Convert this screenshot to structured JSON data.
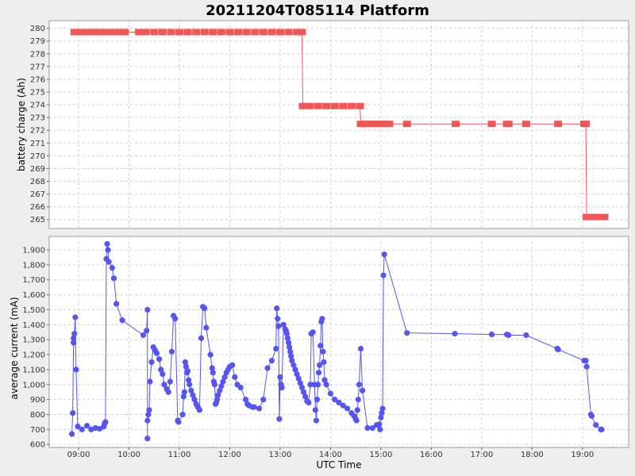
{
  "title": "20211204T085114 Platform",
  "colors": {
    "charge": "#f25555",
    "current": "#5555f2",
    "grid": "#d0d0d0"
  },
  "chart_data": [
    {
      "type": "line",
      "ylabel": "battery charge (Ah)",
      "ylim": [
        264.3,
        280.6
      ],
      "yticks": [
        265,
        266,
        267,
        268,
        269,
        270,
        271,
        272,
        273,
        274,
        275,
        276,
        277,
        278,
        279,
        280
      ],
      "series": [
        {
          "x": [
            "08:55",
            "09:02",
            "09:10",
            "09:18",
            "09:25",
            "09:32",
            "09:40",
            "09:47",
            "09:55",
            "10:12",
            "10:20",
            "10:30",
            "10:40",
            "10:50",
            "11:00",
            "11:10",
            "11:20",
            "11:30",
            "11:40",
            "11:50",
            "12:00",
            "12:10",
            "12:20",
            "12:30",
            "12:40",
            "12:50",
            "13:00",
            "13:10",
            "13:20",
            "13:26",
            "13:27",
            "13:35",
            "13:45",
            "13:55",
            "14:05",
            "14:15",
            "14:25",
            "14:35",
            "14:36",
            "14:39",
            "14:42",
            "14:45",
            "14:50",
            "14:55",
            "15:00",
            "15:05",
            "15:10",
            "15:31",
            "16:29",
            "17:12",
            "17:30",
            "17:32",
            "17:53",
            "18:31",
            "19:02",
            "19:04",
            "19:05",
            "19:10",
            "19:15",
            "19:22",
            "19:26"
          ],
          "y": [
            279.7,
            279.7,
            279.7,
            279.7,
            279.7,
            279.7,
            279.7,
            279.7,
            279.7,
            279.7,
            279.7,
            279.7,
            279.7,
            279.7,
            279.7,
            279.7,
            279.7,
            279.7,
            279.7,
            279.7,
            279.7,
            279.7,
            279.7,
            279.7,
            279.7,
            279.7,
            279.7,
            279.7,
            279.7,
            279.7,
            273.9,
            273.9,
            273.9,
            273.9,
            273.9,
            273.9,
            273.9,
            273.9,
            272.5,
            272.5,
            272.5,
            272.5,
            272.5,
            272.5,
            272.5,
            272.5,
            272.5,
            272.5,
            272.5,
            272.5,
            272.5,
            272.5,
            272.5,
            272.5,
            272.5,
            272.5,
            265.2,
            265.2,
            265.2,
            265.2,
            265.2
          ]
        }
      ]
    },
    {
      "type": "line",
      "xlabel": "UTC Time",
      "ylabel": "average current (mA)",
      "ylim": [
        580,
        1990
      ],
      "yticks": [
        600,
        700,
        800,
        900,
        1000,
        1100,
        1200,
        1300,
        1400,
        1500,
        1600,
        1700,
        1800,
        1900
      ],
      "ytick_labels": [
        "600",
        "700",
        "800",
        "900",
        "1,000",
        "1,100",
        "1,200",
        "1,300",
        "1,400",
        "1,500",
        "1,600",
        "1,700",
        "1,800",
        "1,900"
      ],
      "xticks": [
        "09:00",
        "10:00",
        "11:00",
        "12:00",
        "13:00",
        "14:00",
        "15:00",
        "16:00",
        "17:00",
        "18:00",
        "19:00"
      ],
      "series": [
        {
          "x": [
            "08:52",
            "08:53",
            "08:54",
            "08:54",
            "08:55",
            "08:56",
            "08:57",
            "08:59",
            "09:04",
            "09:10",
            "09:15",
            "09:20",
            "09:25",
            "09:30",
            "09:31",
            "09:32",
            "09:33",
            "09:34",
            "09:35",
            "09:36",
            "09:40",
            "09:42",
            "09:45",
            "09:52",
            "10:17",
            "10:21",
            "10:22",
            "10:22",
            "10:22",
            "10:23",
            "10:24",
            "10:25",
            "10:27",
            "10:29",
            "10:31",
            "10:33",
            "10:36",
            "10:38",
            "10:40",
            "10:42",
            "10:45",
            "10:47",
            "10:49",
            "10:51",
            "10:53",
            "10:55",
            "10:58",
            "10:59",
            "11:04",
            "11:05",
            "11:06",
            "11:07",
            "11:08",
            "11:09",
            "11:10",
            "11:11",
            "11:12",
            "11:14",
            "11:16",
            "11:18",
            "11:20",
            "11:22",
            "11:24",
            "11:26",
            "11:28",
            "11:30",
            "11:32",
            "11:37",
            "11:39",
            "11:40",
            "11:41",
            "11:42",
            "11:43",
            "11:44",
            "11:45",
            "11:46",
            "11:48",
            "11:50",
            "11:52",
            "11:54",
            "11:56",
            "11:58",
            "12:00",
            "12:03",
            "12:06",
            "12:09",
            "12:13",
            "12:19",
            "12:21",
            "12:23",
            "12:27",
            "12:29",
            "12:35",
            "12:40",
            "12:45",
            "12:50",
            "12:55",
            "12:56",
            "12:57",
            "12:58",
            "12:59",
            "13:00",
            "13:01",
            "13:02",
            "13:04",
            "13:06",
            "13:07",
            "13:08",
            "13:09",
            "13:10",
            "13:11",
            "13:12",
            "13:13",
            "13:14",
            "13:16",
            "13:18",
            "13:20",
            "13:22",
            "13:24",
            "13:26",
            "13:28",
            "13:30",
            "13:32",
            "13:34",
            "13:36",
            "13:37",
            "13:39",
            "13:41",
            "13:42",
            "13:43",
            "13:44",
            "13:45",
            "13:46",
            "13:47",
            "13:48",
            "13:49",
            "13:50",
            "13:51",
            "13:52",
            "13:53",
            "13:55",
            "14:00",
            "14:05",
            "14:10",
            "14:15",
            "14:20",
            "14:25",
            "14:28",
            "14:30",
            "14:31",
            "14:32",
            "14:33",
            "14:34",
            "14:36",
            "14:38",
            "14:44",
            "14:50",
            "14:55",
            "14:58",
            "14:59",
            "15:00",
            "15:01",
            "15:02",
            "15:03",
            "15:04",
            "15:31",
            "16:28",
            "17:12",
            "17:30",
            "17:32",
            "17:53",
            "18:30",
            "18:31",
            "19:02",
            "19:04",
            "19:05",
            "19:10",
            "19:11",
            "19:16",
            "19:22",
            "19:23"
          ],
          "y": [
            670,
            810,
            1280,
            1310,
            1340,
            1450,
            1100,
            720,
            700,
            725,
            700,
            710,
            705,
            720,
            740,
            750,
            1840,
            1940,
            1900,
            1820,
            1780,
            1710,
            1540,
            1430,
            1330,
            1360,
            1500,
            640,
            760,
            800,
            830,
            1020,
            1150,
            1250,
            1230,
            1210,
            1170,
            1100,
            1070,
            1000,
            970,
            950,
            1020,
            1220,
            1460,
            1440,
            760,
            750,
            800,
            920,
            950,
            1150,
            1120,
            1080,
            1090,
            1030,
            1000,
            960,
            930,
            900,
            870,
            850,
            830,
            1310,
            1520,
            1510,
            1380,
            1200,
            1110,
            1080,
            1020,
            1000,
            870,
            880,
            900,
            930,
            960,
            990,
            1020,
            1050,
            1080,
            1100,
            1120,
            1130,
            1050,
            1000,
            980,
            900,
            870,
            860,
            850,
            850,
            840,
            900,
            1110,
            1160,
            1240,
            1510,
            1440,
            1390,
            770,
            1050,
            1000,
            980,
            1400,
            1370,
            1360,
            1340,
            1310,
            1280,
            1250,
            1220,
            1190,
            1160,
            1130,
            1100,
            1070,
            1040,
            1010,
            980,
            950,
            920,
            890,
            880,
            1000,
            1340,
            1350,
            1000,
            830,
            760,
            900,
            1000,
            1080,
            1130,
            1260,
            1420,
            1440,
            1220,
            1150,
            1030,
            1000,
            940,
            900,
            880,
            860,
            840,
            810,
            790,
            770,
            760,
            830,
            900,
            1000,
            1240,
            960,
            710,
            710,
            730,
            735,
            700,
            780,
            810,
            840,
            1730,
            1870,
            1345,
            1340,
            1335,
            1335,
            1330,
            1330,
            1240,
            1235,
            1160,
            1160,
            1120,
            800,
            790,
            730,
            700,
            700
          ]
        }
      ]
    }
  ]
}
